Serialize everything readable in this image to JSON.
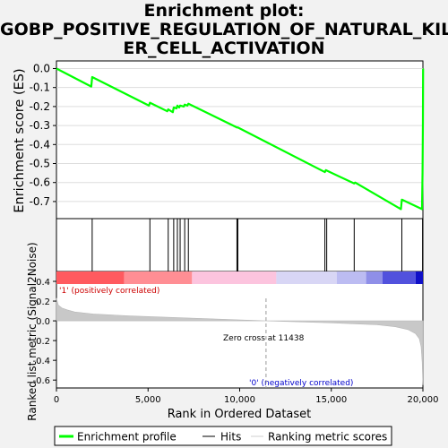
{
  "title_lines": [
    "Enrichment plot:",
    "GOBP_POSITIVE_REGULATION_OF_NATURAL_KILL",
    "ER_CELL_ACTIVATION"
  ],
  "chart_data": {
    "type": "line",
    "es_panel": {
      "ylabel": "Enrichment score (ES)",
      "ylim": [
        -0.79,
        0.04
      ],
      "yticks": [
        0.0,
        -0.1,
        -0.2,
        -0.3,
        -0.4,
        -0.5,
        -0.6,
        -0.7
      ],
      "ytick_labels": [
        "0.0",
        "-0.1",
        "-0.2",
        "-0.3",
        "-0.4",
        "-0.5",
        "-0.6",
        "-0.7"
      ],
      "series": [
        {
          "name": "Enrichment profile",
          "color": "#00ff00",
          "x": [
            0,
            1900,
            1950,
            5050,
            5100,
            6050,
            6100,
            6350,
            6400,
            6550,
            6600,
            6700,
            6750,
            6950,
            7000,
            7150,
            7200,
            9850,
            9900,
            14650,
            14700,
            16250,
            16300,
            18800,
            18850,
            19950,
            19980,
            20000,
            20010
          ],
          "y": [
            0.0,
            -0.095,
            -0.045,
            -0.195,
            -0.18,
            -0.225,
            -0.215,
            -0.23,
            -0.205,
            -0.21,
            -0.195,
            -0.205,
            -0.195,
            -0.2,
            -0.19,
            -0.195,
            -0.185,
            -0.31,
            -0.31,
            -0.545,
            -0.535,
            -0.605,
            -0.6,
            -0.74,
            -0.69,
            -0.74,
            -0.545,
            -0.28,
            0.0
          ]
        }
      ]
    },
    "hits": [
      1950,
      5100,
      6100,
      6400,
      6600,
      6750,
      7000,
      7200,
      9850,
      9900,
      14650,
      14750,
      16250,
      18850,
      19980,
      20000
    ],
    "ranking_panel": {
      "ylabel": "Ranked list metric (Signal2Noise)",
      "ylim": [
        -0.68,
        0.5
      ],
      "yticks": [
        0.4,
        0.2,
        0.0,
        -0.2,
        -0.4,
        -0.6
      ],
      "ytick_labels": [
        "0.4",
        "0.2",
        "0.0",
        "-0.2",
        "-0.4",
        "-0.6"
      ],
      "metric_curve": {
        "x": [
          0,
          100,
          300,
          600,
          1000,
          2000,
          4000,
          7000,
          11438,
          15000,
          17500,
          18500,
          19200,
          19600,
          19800,
          19900,
          19960,
          20000
        ],
        "y": [
          0.23,
          0.16,
          0.13,
          0.11,
          0.09,
          0.07,
          0.05,
          0.03,
          0.0,
          -0.02,
          -0.04,
          -0.06,
          -0.09,
          -0.13,
          -0.18,
          -0.26,
          -0.42,
          -0.65
        ]
      },
      "zero_cross_label": "Zero cross at 11438",
      "zero_cross": 11438,
      "pos_label": "'1' (positively correlated)",
      "neg_label": "'0' (negatively correlated)"
    },
    "xlabel": "Rank in Ordered Dataset",
    "xlim": [
      0,
      20000
    ],
    "xticks": [
      0,
      5000,
      10000,
      15000,
      20000
    ],
    "xtick_labels": [
      "0",
      "5,000",
      "10,000",
      "15,000",
      "20,000"
    ],
    "heatmap_bar": [
      {
        "from": 0,
        "to": 3700,
        "color": "#ff5a5f"
      },
      {
        "from": 3700,
        "to": 7400,
        "color": "#ff8e94"
      },
      {
        "from": 7400,
        "to": 12000,
        "color": "#fcc4de"
      },
      {
        "from": 12000,
        "to": 15300,
        "color": "#d8d6f5"
      },
      {
        "from": 15300,
        "to": 16900,
        "color": "#bcbcf2"
      },
      {
        "from": 16900,
        "to": 17800,
        "color": "#8f8fe8"
      },
      {
        "from": 17800,
        "to": 19600,
        "color": "#5151dd"
      },
      {
        "from": 19600,
        "to": 20000,
        "color": "#1010c8"
      }
    ],
    "legend": {
      "placement": "bottom",
      "items": [
        "Enrichment profile",
        "Hits",
        "Ranking metric scores"
      ]
    }
  }
}
